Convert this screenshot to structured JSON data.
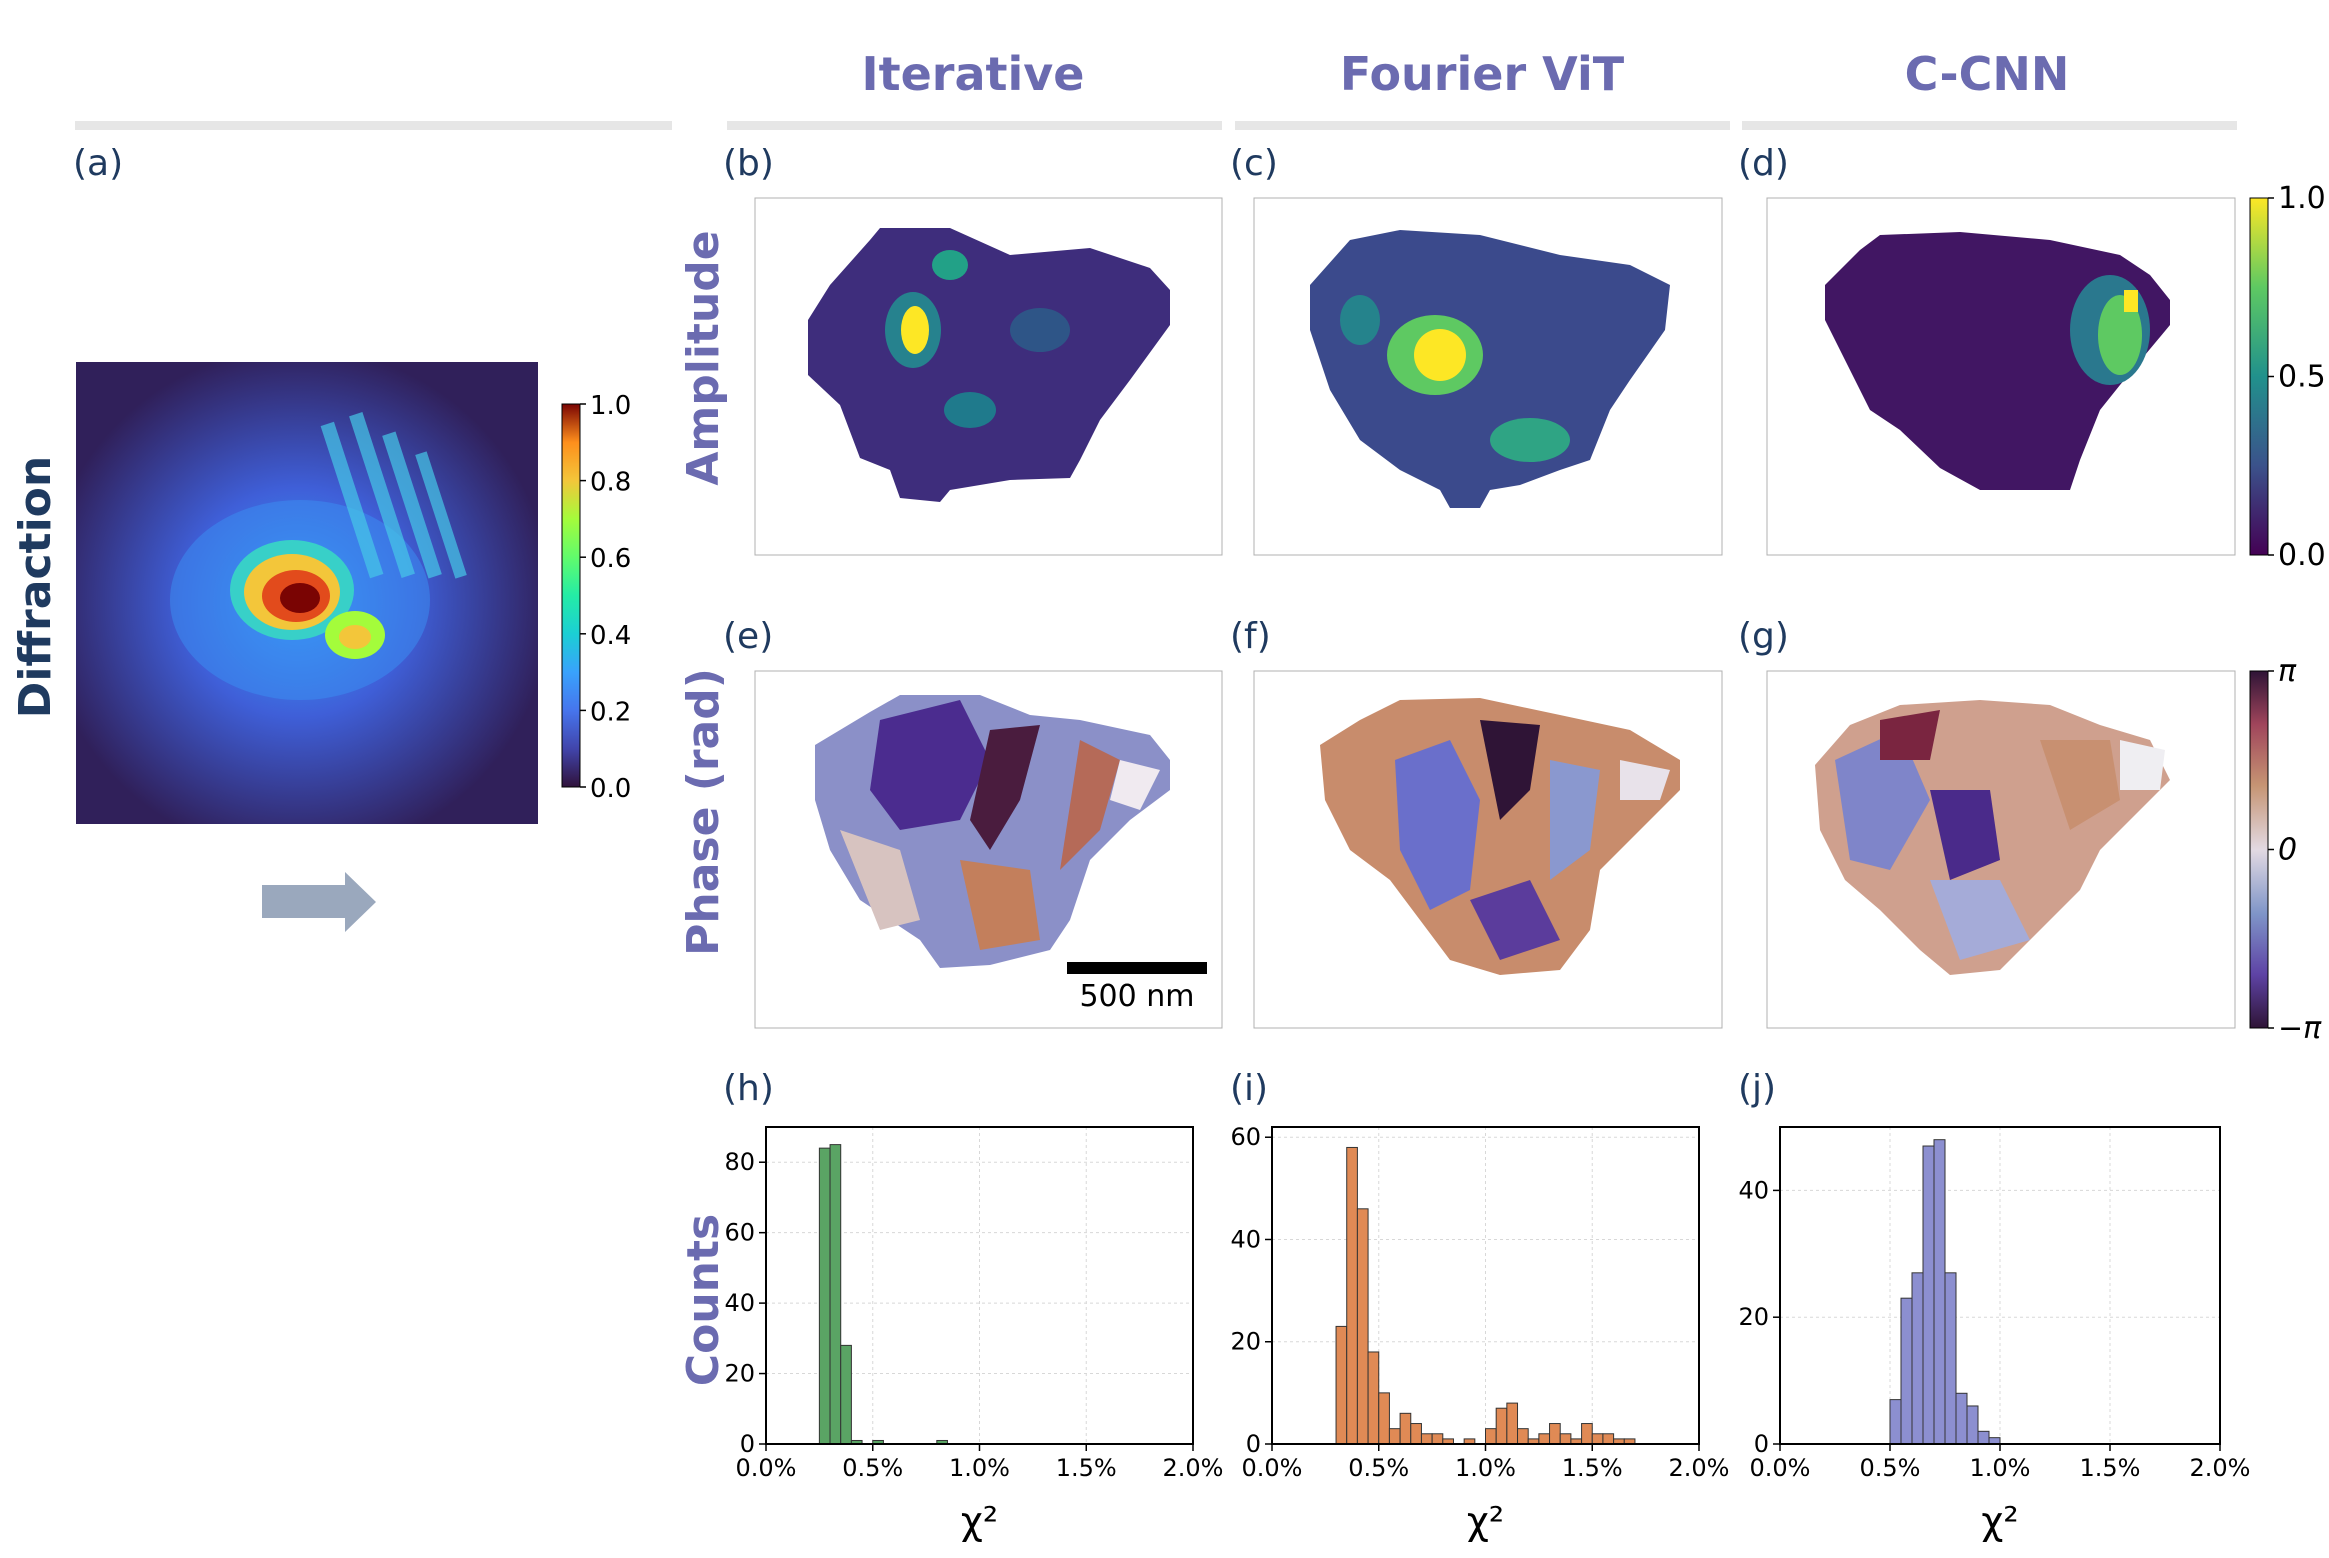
{
  "colors": {
    "header": "#6b6bb0",
    "row_label": "#6b6bb0",
    "diffraction_label": "#1f3a5f",
    "panel_label": "#1f3a5f",
    "rule": "#e6e6e6",
    "arrow": "#9aa8bd",
    "hist_iterative": "#5aa464",
    "hist_vit": "#e08a55",
    "hist_ccnn": "#8c8fd0"
  },
  "headers": {
    "col1": "Iterative",
    "col2": "Fourier ViT",
    "col3": "C-CNN"
  },
  "row_labels": {
    "diffraction": "Diffraction",
    "amplitude": "Amplitude",
    "phase": "Phase (rad)",
    "counts": "Counts"
  },
  "panel_labels": {
    "a": "(a)",
    "b": "(b)",
    "c": "(c)",
    "d": "(d)",
    "e": "(e)",
    "f": "(f)",
    "g": "(g)",
    "h": "(h)",
    "i": "(i)",
    "j": "(j)"
  },
  "diffraction_colorbar": {
    "ticks": [
      "1.0",
      "0.8",
      "0.6",
      "0.4",
      "0.2",
      "0.0"
    ]
  },
  "amplitude_colorbar": {
    "ticks": [
      "1.0",
      "0.5",
      "0.0"
    ]
  },
  "phase_colorbar": {
    "ticks": [
      "π",
      "0",
      "−π"
    ]
  },
  "scalebar": {
    "label": "500 nm"
  },
  "chart_data": [
    {
      "type": "bar",
      "title": "Iterative",
      "xlabel": "χ²",
      "ylabel": "Counts",
      "xlim": [
        0,
        2.0
      ],
      "ylim": [
        0,
        90
      ],
      "xticks": [
        "0.0%",
        "0.5%",
        "1.0%",
        "1.5%",
        "2.0%"
      ],
      "yticks": [
        "0",
        "20",
        "40",
        "60",
        "80"
      ],
      "bin_width": 0.05,
      "bins": [
        [
          0.25,
          84
        ],
        [
          0.3,
          85
        ],
        [
          0.35,
          28
        ],
        [
          0.4,
          1
        ],
        [
          0.5,
          1
        ],
        [
          0.8,
          1
        ]
      ]
    },
    {
      "type": "bar",
      "title": "Fourier ViT",
      "xlabel": "χ²",
      "ylabel": "Counts",
      "xlim": [
        0,
        2.0
      ],
      "ylim": [
        0,
        62
      ],
      "xticks": [
        "0.0%",
        "0.5%",
        "1.0%",
        "1.5%",
        "2.0%"
      ],
      "yticks": [
        "0",
        "20",
        "40",
        "60"
      ],
      "bin_width": 0.05,
      "bins": [
        [
          0.3,
          23
        ],
        [
          0.35,
          58
        ],
        [
          0.4,
          46
        ],
        [
          0.45,
          18
        ],
        [
          0.5,
          10
        ],
        [
          0.55,
          3
        ],
        [
          0.6,
          6
        ],
        [
          0.65,
          4
        ],
        [
          0.7,
          2
        ],
        [
          0.75,
          2
        ],
        [
          0.8,
          1
        ],
        [
          0.9,
          1
        ],
        [
          1.0,
          3
        ],
        [
          1.05,
          7
        ],
        [
          1.1,
          8
        ],
        [
          1.15,
          3
        ],
        [
          1.2,
          1
        ],
        [
          1.25,
          2
        ],
        [
          1.3,
          4
        ],
        [
          1.35,
          2
        ],
        [
          1.4,
          1
        ],
        [
          1.45,
          4
        ],
        [
          1.5,
          2
        ],
        [
          1.55,
          2
        ],
        [
          1.6,
          1
        ],
        [
          1.65,
          1
        ]
      ]
    },
    {
      "type": "bar",
      "title": "C-CNN",
      "xlabel": "χ²",
      "ylabel": "Counts",
      "xlim": [
        0,
        2.0
      ],
      "ylim": [
        0,
        50
      ],
      "xticks": [
        "0.0%",
        "0.5%",
        "1.0%",
        "1.5%",
        "2.0%"
      ],
      "yticks": [
        "0",
        "20",
        "40"
      ],
      "bin_width": 0.05,
      "bins": [
        [
          0.5,
          7
        ],
        [
          0.55,
          23
        ],
        [
          0.6,
          27
        ],
        [
          0.65,
          47
        ],
        [
          0.7,
          48
        ],
        [
          0.75,
          27
        ],
        [
          0.8,
          8
        ],
        [
          0.85,
          6
        ],
        [
          0.9,
          2
        ],
        [
          0.95,
          1
        ]
      ]
    }
  ]
}
